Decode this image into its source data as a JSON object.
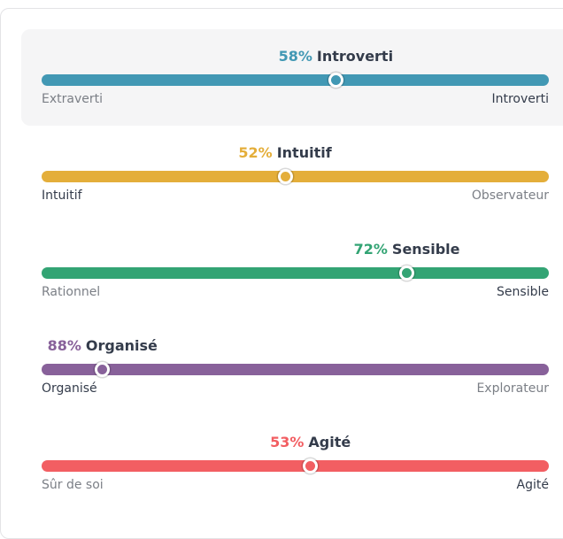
{
  "traits": [
    {
      "value": 58,
      "value_label": "58%",
      "trait": "Introverti",
      "side": "right",
      "color": "#4298b4",
      "left": "Extraverti",
      "right": "Introverti",
      "highlighted": true
    },
    {
      "value": 52,
      "value_label": "52%",
      "trait": "Intuitif",
      "side": "left",
      "color": "#e4ae3a",
      "left": "Intuitif",
      "right": "Observateur",
      "highlighted": false
    },
    {
      "value": 72,
      "value_label": "72%",
      "trait": "Sensible",
      "side": "right",
      "color": "#33a474",
      "left": "Rationnel",
      "right": "Sensible",
      "highlighted": false
    },
    {
      "value": 88,
      "value_label": "88%",
      "trait": "Organisé",
      "side": "left",
      "color": "#88619a",
      "left": "Organisé",
      "right": "Explorateur",
      "highlighted": false
    },
    {
      "value": 53,
      "value_label": "53%",
      "trait": "Agité",
      "side": "right",
      "color": "#f25e62",
      "left": "Sûr de soi",
      "right": "Agité",
      "highlighted": false
    }
  ]
}
